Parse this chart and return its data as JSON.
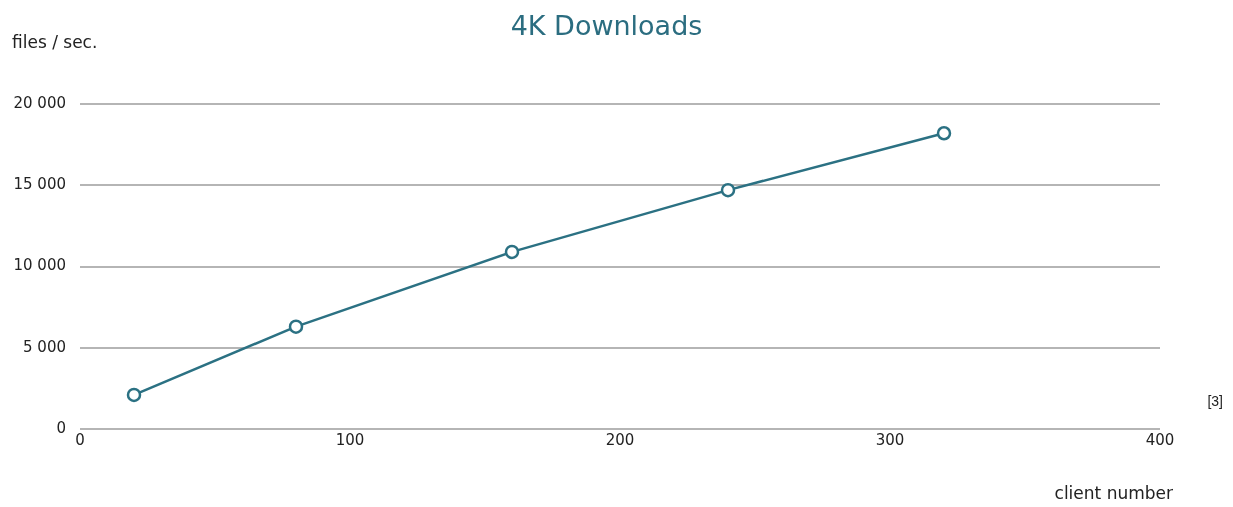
{
  "chart_data": {
    "type": "line",
    "title": "4K Downloads",
    "xlabel": "client number",
    "ylabel": "files / sec.",
    "x": [
      20,
      80,
      160,
      240,
      320
    ],
    "series": [
      {
        "color": "#2b7183",
        "values": [
          2100,
          6300,
          10900,
          14700,
          18200
        ]
      }
    ],
    "xlim": [
      0,
      400
    ],
    "xticks": [
      0,
      100,
      200,
      300,
      400
    ],
    "ylim": [
      0,
      20000
    ],
    "yticks": [
      {
        "value": 0,
        "label": "0"
      },
      {
        "value": 5000,
        "label": "5 000"
      },
      {
        "value": 10000,
        "label": "10 000"
      },
      {
        "value": 15000,
        "label": "15 000"
      },
      {
        "value": 20000,
        "label": "20 000"
      }
    ],
    "grid": "y",
    "marker": "circle",
    "line_style": "solid",
    "legend": false,
    "annotations": [
      "[3]"
    ]
  }
}
